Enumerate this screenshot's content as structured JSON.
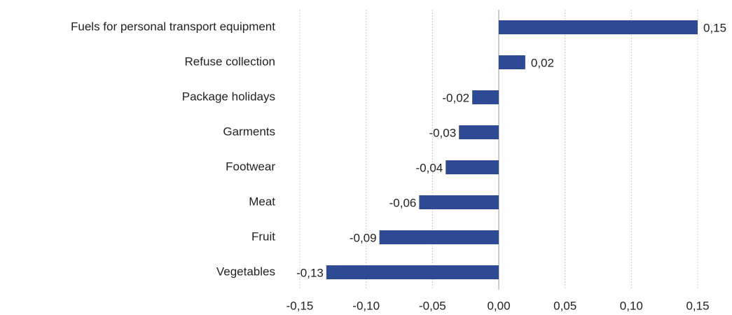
{
  "chart_data": {
    "type": "hbar",
    "categories": [
      "Fuels for personal transport equipment",
      "Refuse collection",
      "Package holidays",
      "Garments",
      "Footwear",
      "Meat",
      "Fruit",
      "Vegetables"
    ],
    "values": [
      0.15,
      0.02,
      -0.02,
      -0.03,
      -0.04,
      -0.06,
      -0.09,
      -0.13
    ],
    "value_labels": [
      "0,15",
      "0,02",
      "-0,02",
      "-0,03",
      "-0,04",
      "-0,06",
      "-0,09",
      "-0,13"
    ],
    "color": "#2e4a94",
    "xlim": [
      -0.15,
      0.15
    ],
    "xticks": [
      {
        "value": -0.15,
        "label": "-0,15"
      },
      {
        "value": -0.1,
        "label": "-0,10"
      },
      {
        "value": -0.05,
        "label": "-0,05"
      },
      {
        "value": 0,
        "label": "0,00"
      },
      {
        "value": 0.05,
        "label": "0,05"
      },
      {
        "value": 0.1,
        "label": "0,10"
      },
      {
        "value": 0.15,
        "label": "0,15"
      }
    ],
    "grid": true
  }
}
